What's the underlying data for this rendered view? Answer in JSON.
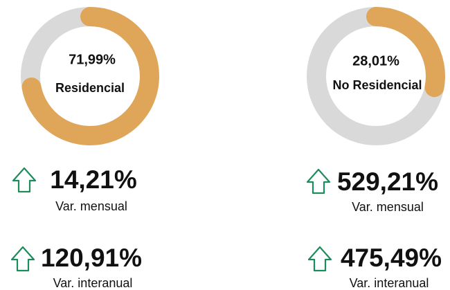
{
  "chart_data": [
    {
      "type": "donut",
      "categories": [
        "Residencial"
      ],
      "values": [
        71.99
      ],
      "value_labels": [
        "71,99%"
      ],
      "color": "#dfa65a",
      "track_color": "#d9d9d9"
    },
    {
      "type": "donut",
      "categories": [
        "No Residencial"
      ],
      "values": [
        28.01
      ],
      "value_labels": [
        "28,01%"
      ],
      "color": "#dfa65a",
      "track_color": "#d9d9d9"
    }
  ],
  "kpis": [
    {
      "value": "14,21%",
      "caption": "Var. mensual"
    },
    {
      "value": "529,21%",
      "caption": "Var. mensual"
    },
    {
      "value": "120,91%",
      "caption": "Var. interanual"
    },
    {
      "value": "475,49%",
      "caption": "Var. interanual"
    }
  ]
}
